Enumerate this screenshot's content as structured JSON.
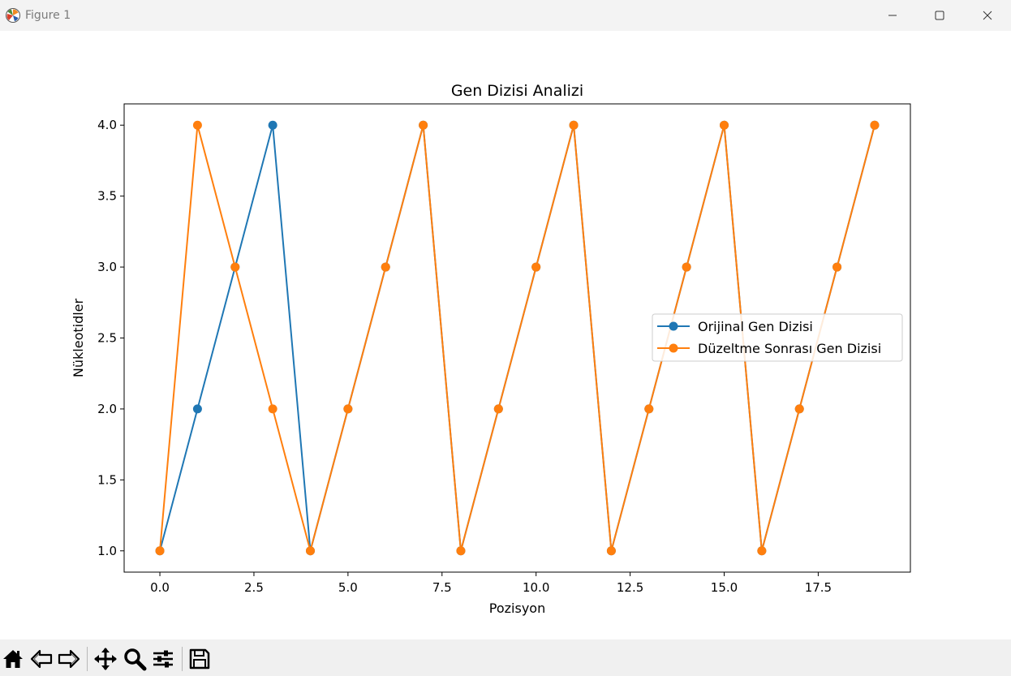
{
  "window": {
    "title": "Figure 1",
    "app_icon": "matplotlib-icon",
    "controls": [
      "minimize-icon",
      "maximize-icon",
      "close-icon"
    ]
  },
  "toolbar": {
    "buttons": [
      "home-icon",
      "back-icon",
      "forward-icon",
      "pan-icon",
      "zoom-icon",
      "configure-subplots-icon",
      "save-icon"
    ]
  },
  "chart_data": {
    "type": "line",
    "title": "Gen Dizisi Analizi",
    "xlabel": "Pozisyon",
    "ylabel": "Nükleotidler",
    "xlim": [
      -0.95,
      19.95
    ],
    "ylim": [
      0.85,
      4.15
    ],
    "xticks": [
      0.0,
      2.5,
      5.0,
      7.5,
      10.0,
      12.5,
      15.0,
      17.5
    ],
    "xtick_labels": [
      "0.0",
      "2.5",
      "5.0",
      "7.5",
      "10.0",
      "12.5",
      "15.0",
      "17.5"
    ],
    "yticks": [
      1.0,
      1.5,
      2.0,
      2.5,
      3.0,
      3.5,
      4.0
    ],
    "ytick_labels": [
      "1.0",
      "1.5",
      "2.0",
      "2.5",
      "3.0",
      "3.5",
      "4.0"
    ],
    "grid": false,
    "legend_position": "center-right",
    "x": [
      0,
      1,
      2,
      3,
      4,
      5,
      6,
      7,
      8,
      9,
      10,
      11,
      12,
      13,
      14,
      15,
      16,
      17,
      18,
      19
    ],
    "series": [
      {
        "name": "Orijinal Gen Dizisi",
        "color": "#1f77b4",
        "marker": "circle",
        "values": [
          1,
          2,
          3,
          4,
          1,
          2,
          3,
          4,
          1,
          2,
          3,
          4,
          1,
          2,
          3,
          4,
          1,
          2,
          3,
          4
        ]
      },
      {
        "name": "Düzeltme Sonrası Gen Dizisi",
        "color": "#ff7f0e",
        "marker": "circle",
        "values": [
          1,
          4,
          3,
          2,
          1,
          2,
          3,
          4,
          1,
          2,
          3,
          4,
          1,
          2,
          3,
          4,
          1,
          2,
          3,
          4
        ]
      }
    ]
  }
}
